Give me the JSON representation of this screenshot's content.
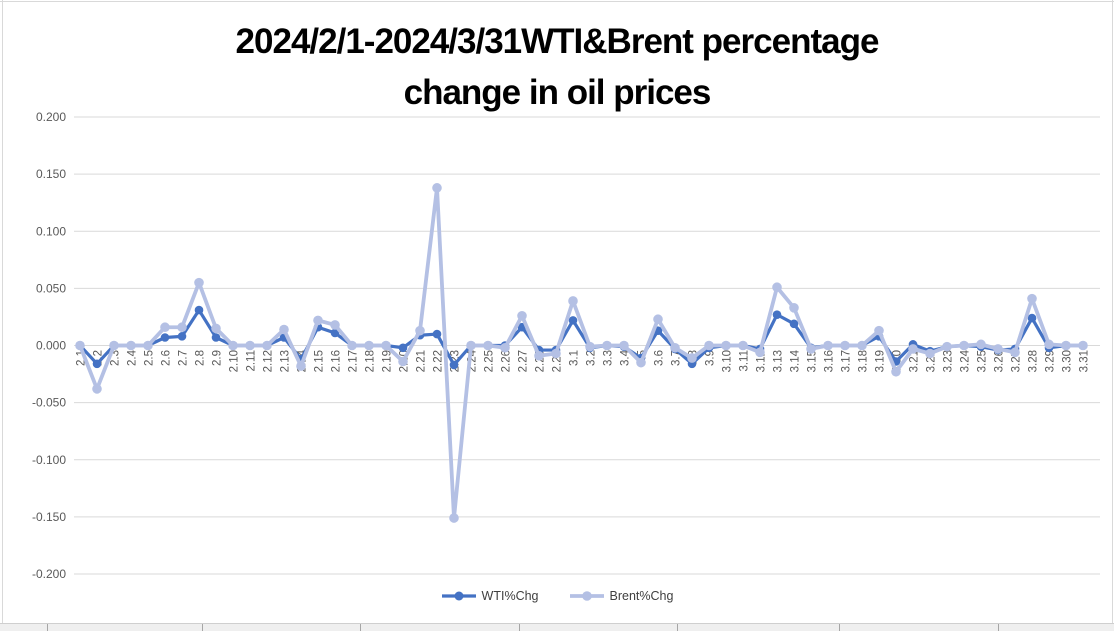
{
  "chart_data": {
    "type": "line",
    "title": {
      "lines": [
        "2024/2/1-2024/3/31WTI&Brent percentage",
        "change in oil prices"
      ],
      "full": "2024/2/1-2024/3/31WTI&Brent percentage change in oil prices"
    },
    "categories": [
      "2.1",
      "2.2",
      "2.3",
      "2.4",
      "2.5",
      "2.6",
      "2.7",
      "2.8",
      "2.9",
      "2.10",
      "2.11",
      "2.12",
      "2.13",
      "2.14",
      "2.15",
      "2.16",
      "2.17",
      "2.18",
      "2.19",
      "2.20",
      "2.21",
      "2.22",
      "2.23",
      "2.24",
      "2.25",
      "2.26",
      "2.27",
      "2.28",
      "2.29",
      "3.1",
      "3.2",
      "3.3",
      "3.4",
      "3.5",
      "3.6",
      "3.7",
      "3.8",
      "3.9",
      "3.10",
      "3.11",
      "3.12",
      "3.13",
      "3.14",
      "3.15",
      "3.16",
      "3.17",
      "3.18",
      "3.19",
      "3.20",
      "3.21",
      "3.22",
      "3.23",
      "3.24",
      "3.25",
      "3.26",
      "3.27",
      "3.28",
      "3.29",
      "3.30",
      "3.31"
    ],
    "series": [
      {
        "name": "WTI%Chg",
        "color": "#4472C4",
        "values": [
          0.0,
          -0.016,
          0.0,
          0.0,
          0.0,
          0.007,
          0.008,
          0.031,
          0.007,
          0.0,
          0.0,
          0.0,
          0.007,
          -0.012,
          0.016,
          0.011,
          0.0,
          0.0,
          0.0,
          -0.002,
          0.009,
          0.01,
          -0.017,
          0.0,
          0.0,
          0.0,
          0.016,
          -0.004,
          -0.004,
          0.022,
          -0.002,
          0.0,
          -0.001,
          -0.011,
          0.013,
          -0.003,
          -0.016,
          -0.002,
          0.0,
          0.0,
          -0.003,
          0.027,
          0.019,
          -0.002,
          0.0,
          0.0,
          0.0,
          0.008,
          -0.014,
          0.001,
          -0.005,
          -0.001,
          0.0,
          -0.001,
          -0.004,
          -0.003,
          0.024,
          -0.002,
          0.0,
          0.0
        ]
      },
      {
        "name": "Brent%Chg",
        "color": "#B4C0E4",
        "values": [
          0.0,
          -0.038,
          0.0,
          0.0,
          0.0,
          0.016,
          0.016,
          0.055,
          0.015,
          0.0,
          0.0,
          0.0,
          0.014,
          -0.018,
          0.022,
          0.018,
          0.0,
          0.0,
          0.0,
          -0.014,
          0.013,
          0.138,
          -0.151,
          0.0,
          0.0,
          -0.002,
          0.026,
          -0.009,
          -0.007,
          0.039,
          -0.001,
          0.0,
          0.0,
          -0.015,
          0.023,
          -0.002,
          -0.011,
          0.0,
          0.0,
          0.0,
          -0.006,
          0.051,
          0.033,
          -0.003,
          0.0,
          0.0,
          0.0,
          0.013,
          -0.023,
          -0.003,
          -0.007,
          -0.001,
          0.0,
          0.001,
          -0.003,
          -0.006,
          0.041,
          0.001,
          0.0,
          0.0
        ]
      }
    ],
    "ylim": [
      -0.2,
      0.2
    ],
    "ytick_step": 0.05,
    "ytick_labels": [
      "0.200",
      "0.150",
      "0.100",
      "0.050",
      "0.000",
      "-0.050",
      "-0.100",
      "-0.150",
      "-0.200"
    ],
    "xlabel": "",
    "ylabel": "",
    "grid": true,
    "legend_position": "bottom",
    "colors": {
      "gridline": "#d9d9d9",
      "axis_text": "#595959",
      "title_text": "#000000"
    }
  }
}
